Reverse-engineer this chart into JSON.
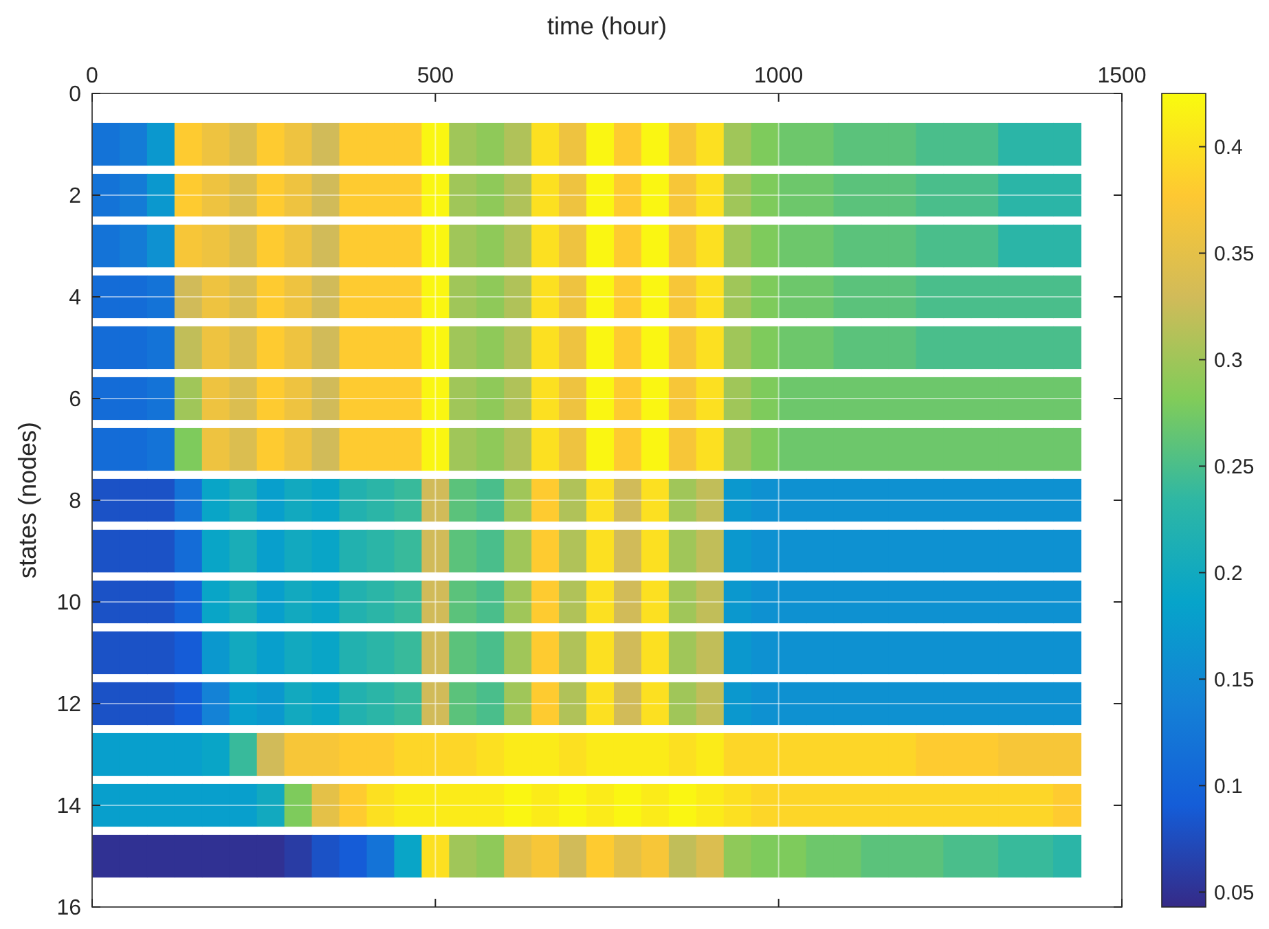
{
  "chart_data": {
    "type": "heatmap",
    "xlabel": "time (hour)",
    "ylabel": "states (nodes)",
    "x": [
      20,
      60,
      100,
      140,
      180,
      220,
      260,
      300,
      340,
      380,
      420,
      460,
      500,
      540,
      580,
      620,
      660,
      700,
      740,
      780,
      820,
      860,
      900,
      940,
      980,
      1020,
      1060,
      1100,
      1140,
      1180,
      1220,
      1260,
      1300,
      1340,
      1380,
      1420
    ],
    "y": [
      1,
      2,
      3,
      4,
      5,
      6,
      7,
      8,
      9,
      10,
      11,
      12,
      13,
      14,
      15
    ],
    "cells": [
      [
        0.12,
        0.13,
        0.17,
        0.38,
        0.36,
        0.34,
        0.38,
        0.36,
        0.33,
        0.38,
        0.38,
        0.38,
        0.42,
        0.3,
        0.29,
        0.31,
        0.4,
        0.36,
        0.42,
        0.38,
        0.42,
        0.37,
        0.4,
        0.3,
        0.28,
        0.27,
        0.27,
        0.26,
        0.26,
        0.26,
        0.25,
        0.25,
        0.25,
        0.23,
        0.23,
        0.23
      ],
      [
        0.12,
        0.13,
        0.17,
        0.38,
        0.36,
        0.34,
        0.38,
        0.36,
        0.33,
        0.38,
        0.38,
        0.38,
        0.42,
        0.3,
        0.29,
        0.31,
        0.4,
        0.36,
        0.42,
        0.38,
        0.42,
        0.37,
        0.4,
        0.3,
        0.28,
        0.27,
        0.27,
        0.26,
        0.26,
        0.26,
        0.25,
        0.25,
        0.25,
        0.23,
        0.23,
        0.23
      ],
      [
        0.12,
        0.13,
        0.16,
        0.37,
        0.36,
        0.34,
        0.38,
        0.36,
        0.33,
        0.38,
        0.38,
        0.38,
        0.42,
        0.3,
        0.29,
        0.31,
        0.4,
        0.36,
        0.42,
        0.38,
        0.42,
        0.37,
        0.4,
        0.3,
        0.28,
        0.27,
        0.27,
        0.26,
        0.26,
        0.26,
        0.25,
        0.25,
        0.25,
        0.23,
        0.23,
        0.23
      ],
      [
        0.11,
        0.11,
        0.12,
        0.33,
        0.36,
        0.34,
        0.38,
        0.36,
        0.33,
        0.38,
        0.38,
        0.38,
        0.42,
        0.3,
        0.29,
        0.31,
        0.4,
        0.36,
        0.42,
        0.38,
        0.42,
        0.37,
        0.4,
        0.3,
        0.28,
        0.27,
        0.27,
        0.26,
        0.26,
        0.26,
        0.25,
        0.25,
        0.25,
        0.25,
        0.25,
        0.25
      ],
      [
        0.11,
        0.11,
        0.12,
        0.32,
        0.36,
        0.34,
        0.38,
        0.36,
        0.33,
        0.38,
        0.38,
        0.38,
        0.42,
        0.3,
        0.29,
        0.31,
        0.4,
        0.36,
        0.42,
        0.38,
        0.42,
        0.37,
        0.4,
        0.3,
        0.28,
        0.27,
        0.27,
        0.26,
        0.26,
        0.26,
        0.25,
        0.25,
        0.25,
        0.25,
        0.25,
        0.25
      ],
      [
        0.11,
        0.11,
        0.12,
        0.3,
        0.36,
        0.34,
        0.38,
        0.36,
        0.33,
        0.38,
        0.38,
        0.38,
        0.42,
        0.3,
        0.29,
        0.31,
        0.4,
        0.36,
        0.42,
        0.38,
        0.42,
        0.37,
        0.4,
        0.3,
        0.28,
        0.27,
        0.27,
        0.27,
        0.27,
        0.27,
        0.27,
        0.27,
        0.27,
        0.27,
        0.27,
        0.27
      ],
      [
        0.11,
        0.11,
        0.12,
        0.28,
        0.36,
        0.34,
        0.38,
        0.36,
        0.33,
        0.38,
        0.38,
        0.38,
        0.42,
        0.3,
        0.29,
        0.31,
        0.4,
        0.36,
        0.42,
        0.38,
        0.42,
        0.37,
        0.4,
        0.3,
        0.28,
        0.27,
        0.27,
        0.27,
        0.27,
        0.27,
        0.27,
        0.27,
        0.27,
        0.27,
        0.27,
        0.27
      ],
      [
        0.08,
        0.08,
        0.08,
        0.12,
        0.19,
        0.21,
        0.18,
        0.2,
        0.19,
        0.22,
        0.23,
        0.24,
        0.33,
        0.26,
        0.25,
        0.3,
        0.38,
        0.31,
        0.4,
        0.33,
        0.4,
        0.3,
        0.32,
        0.17,
        0.16,
        0.16,
        0.16,
        0.16,
        0.16,
        0.16,
        0.16,
        0.16,
        0.16,
        0.16,
        0.16,
        0.16
      ],
      [
        0.08,
        0.08,
        0.08,
        0.11,
        0.19,
        0.21,
        0.18,
        0.2,
        0.19,
        0.22,
        0.23,
        0.24,
        0.33,
        0.26,
        0.25,
        0.3,
        0.38,
        0.31,
        0.4,
        0.33,
        0.4,
        0.3,
        0.32,
        0.17,
        0.16,
        0.16,
        0.16,
        0.16,
        0.16,
        0.16,
        0.16,
        0.16,
        0.16,
        0.16,
        0.16,
        0.16
      ],
      [
        0.08,
        0.08,
        0.08,
        0.1,
        0.19,
        0.21,
        0.18,
        0.2,
        0.19,
        0.22,
        0.23,
        0.24,
        0.33,
        0.26,
        0.25,
        0.3,
        0.38,
        0.31,
        0.4,
        0.33,
        0.4,
        0.3,
        0.32,
        0.17,
        0.16,
        0.16,
        0.16,
        0.16,
        0.16,
        0.16,
        0.16,
        0.16,
        0.16,
        0.16,
        0.16,
        0.16
      ],
      [
        0.08,
        0.08,
        0.08,
        0.09,
        0.17,
        0.2,
        0.18,
        0.2,
        0.19,
        0.22,
        0.23,
        0.24,
        0.33,
        0.26,
        0.25,
        0.3,
        0.38,
        0.31,
        0.4,
        0.33,
        0.4,
        0.3,
        0.32,
        0.17,
        0.16,
        0.16,
        0.16,
        0.16,
        0.16,
        0.16,
        0.16,
        0.16,
        0.16,
        0.16,
        0.16,
        0.16
      ],
      [
        0.08,
        0.08,
        0.08,
        0.09,
        0.14,
        0.18,
        0.17,
        0.2,
        0.19,
        0.22,
        0.23,
        0.24,
        0.33,
        0.26,
        0.25,
        0.3,
        0.38,
        0.31,
        0.4,
        0.33,
        0.4,
        0.3,
        0.32,
        0.17,
        0.16,
        0.16,
        0.16,
        0.16,
        0.16,
        0.16,
        0.16,
        0.16,
        0.16,
        0.16,
        0.16,
        0.16
      ],
      [
        0.18,
        0.18,
        0.18,
        0.18,
        0.19,
        0.24,
        0.33,
        0.37,
        0.37,
        0.38,
        0.38,
        0.39,
        0.39,
        0.39,
        0.4,
        0.41,
        0.41,
        0.4,
        0.41,
        0.41,
        0.41,
        0.4,
        0.41,
        0.39,
        0.39,
        0.39,
        0.39,
        0.39,
        0.39,
        0.39,
        0.38,
        0.38,
        0.38,
        0.37,
        0.37,
        0.37
      ],
      [
        0.18,
        0.18,
        0.18,
        0.18,
        0.18,
        0.18,
        0.2,
        0.28,
        0.35,
        0.38,
        0.4,
        0.41,
        0.41,
        0.41,
        0.41,
        0.42,
        0.41,
        0.42,
        0.41,
        0.42,
        0.41,
        0.42,
        0.41,
        0.4,
        0.39,
        0.39,
        0.39,
        0.39,
        0.39,
        0.39,
        0.39,
        0.39,
        0.39,
        0.39,
        0.39,
        0.38
      ],
      [
        0.05,
        0.05,
        0.05,
        0.05,
        0.05,
        0.05,
        0.05,
        0.06,
        0.08,
        0.09,
        0.12,
        0.19,
        0.4,
        0.3,
        0.29,
        0.35,
        0.37,
        0.33,
        0.38,
        0.35,
        0.37,
        0.32,
        0.34,
        0.29,
        0.28,
        0.28,
        0.27,
        0.27,
        0.26,
        0.26,
        0.26,
        0.25,
        0.25,
        0.24,
        0.24,
        0.23
      ]
    ],
    "xlim": [
      0,
      1500
    ],
    "xticks": [
      0,
      500,
      1000,
      1500
    ],
    "ylim": [
      16,
      0
    ],
    "yticks": [
      0,
      2,
      4,
      6,
      8,
      10,
      12,
      14,
      16
    ],
    "clim": [
      0.043,
      0.425
    ],
    "cticks": [
      0.05,
      0.1,
      0.15,
      0.2,
      0.25,
      0.3,
      0.35,
      0.4
    ],
    "grid": true
  }
}
